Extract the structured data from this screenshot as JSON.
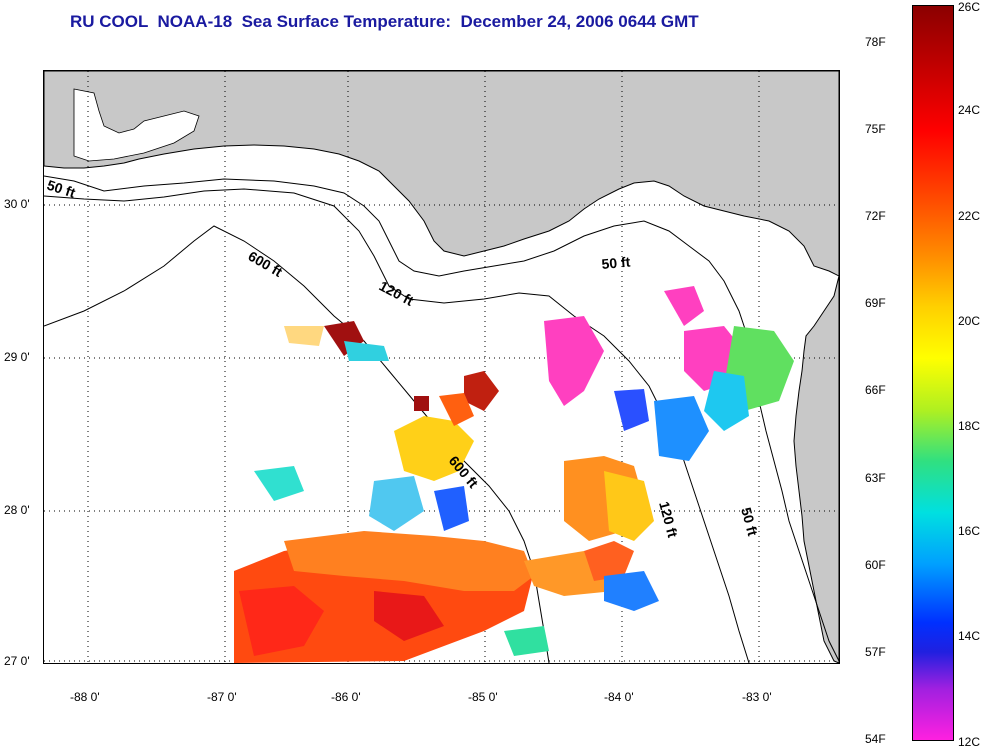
{
  "title": "RU COOL  NOAA-18  Sea Surface Temperature:  December 24, 2006 0644 GMT",
  "map": {
    "lat_labels": [
      "30 0'",
      "29 0'",
      "28 0'",
      "27 0'"
    ],
    "lon_labels": [
      "-88 0'",
      "-87 0'",
      "-86 0'",
      "-85 0'",
      "-84 0'",
      "-83 0'"
    ],
    "contour_labels": [
      "50 ft",
      "600 ft",
      "120 ft",
      "50 ft",
      "600 ft",
      "120 ft",
      "50 ft"
    ],
    "land_color": "#c8c8c8",
    "graticule": "dotted"
  },
  "colorbar": {
    "fahrenheit": [
      "78F",
      "75F",
      "72F",
      "69F",
      "66F",
      "63F",
      "60F",
      "57F",
      "54F"
    ],
    "celsius": [
      "26C",
      "24C",
      "22C",
      "20C",
      "18C",
      "16C",
      "14C",
      "12C"
    ],
    "range_c": [
      12,
      26
    ],
    "range_f": [
      54,
      79
    ]
  }
}
